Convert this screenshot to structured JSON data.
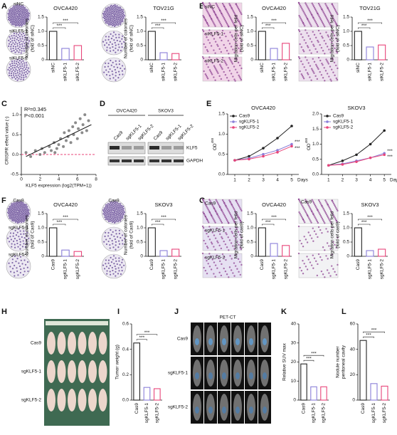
{
  "panel_labels": [
    "A",
    "B",
    "C",
    "D",
    "E",
    "F",
    "G",
    "H",
    "I",
    "J",
    "K",
    "L"
  ],
  "images": {
    "A": [
      "siNC",
      "siKLF5-1",
      "siKLF5-2"
    ],
    "B": [
      "siNC",
      "siKLF5-1",
      "siKLF5-2"
    ],
    "F": [
      "Cas9",
      "sgKLF5-1",
      "sgKLF5-2"
    ],
    "G": [
      "Cas9",
      "sgKLF5-1",
      "sgKLF5-2"
    ],
    "H": [
      "Cas9",
      "sgKLF5-1",
      "sgKLF5-2"
    ],
    "J": [
      "Cas9",
      "sgKLF5-1",
      "sgKLF5-2"
    ]
  },
  "pet_ct_title": "PET-CT",
  "western_blot": {
    "cell_lines": [
      "OVCA420",
      "SKOV3"
    ],
    "lanes": [
      "Cas9",
      "sgKLF5-1",
      "sgKLF5-2",
      "Cas9",
      "sgKLF5-1",
      "sgKLF5-2"
    ],
    "proteins": [
      "KLF5",
      "GAPDH"
    ]
  },
  "chart_data": [
    {
      "type": "bar",
      "title": "OVCA420",
      "y_label": [
        "Number of colonies",
        "(fold of siNC)"
      ],
      "categories": [
        "siNC",
        "siKLF5-1",
        "siKLF5-2"
      ],
      "values": [
        1.0,
        0.4,
        0.5
      ],
      "colors": [
        "#222222",
        "#8a7fd8",
        "#e8457a"
      ],
      "ylim": [
        0,
        1.5
      ],
      "yticks": [
        0,
        0.5,
        {
          "value": 1,
          "label": "1.0"
        },
        1.5
      ],
      "annotations": [
        "***",
        "***"
      ]
    },
    {
      "type": "bar",
      "title": "TOV21G",
      "y_label": [
        "Number of colonies",
        "(fold of siNC)"
      ],
      "categories": [
        "siNC",
        "siKLF5-1",
        "siKLF5-2"
      ],
      "values": [
        1.0,
        0.25,
        0.22
      ],
      "colors": [
        "#222222",
        "#8a7fd8",
        "#e8457a"
      ],
      "ylim": [
        0,
        1.5
      ],
      "yticks": [
        0,
        0.5,
        {
          "value": 1,
          "label": "1.0"
        },
        1.5
      ],
      "annotations": [
        "***",
        "***"
      ]
    },
    {
      "type": "bar",
      "title": "OVCA420",
      "y_label": [
        "Migration cells per feild",
        "(fold of siNC)"
      ],
      "categories": [
        "siNC",
        "siKLF5-1",
        "siKLF5-2"
      ],
      "values": [
        1.0,
        0.4,
        0.58
      ],
      "colors": [
        "#222222",
        "#8a7fd8",
        "#e8457a"
      ],
      "ylim": [
        0,
        1.5
      ],
      "yticks": [
        0,
        0.5,
        {
          "value": 1,
          "label": "1.0"
        },
        1.5
      ],
      "annotations": [
        "***",
        "***"
      ]
    },
    {
      "type": "bar",
      "title": "TOV21G",
      "y_label": [
        "Migration cells per feild",
        "(fold of siNC)"
      ],
      "categories": [
        "siNC",
        "siKLF5-1",
        "siKLF5-2"
      ],
      "values": [
        1.0,
        0.45,
        0.52
      ],
      "colors": [
        "#222222",
        "#8a7fd8",
        "#e8457a"
      ],
      "ylim": [
        0,
        1.5
      ],
      "yticks": [
        0,
        0.5,
        {
          "value": 1,
          "label": "1.0"
        },
        1.5
      ],
      "annotations": [
        "***",
        "***"
      ]
    },
    {
      "type": "scatter",
      "x_label": "KLF5 expression (log2(TPM+1))",
      "y_label": "CRISPR effect value (-)",
      "annotations": [
        "R²=0.345",
        "P<0.001"
      ],
      "color": "#777777",
      "x": [
        0.5,
        1.0,
        1.5,
        2.0,
        2.2,
        2.5,
        3.0,
        3.2,
        3.5,
        3.8,
        4.0,
        4.2,
        4.5,
        4.6,
        4.8,
        5.0,
        5.1,
        5.3,
        5.5,
        5.6,
        5.8,
        6.0,
        6.1,
        6.3,
        6.5,
        6.6,
        6.8,
        7.0,
        7.2,
        3.6
      ],
      "y": [
        0.05,
        -0.05,
        0.1,
        0.0,
        0.15,
        0.05,
        0.2,
        0.1,
        0.3,
        0.15,
        0.25,
        0.4,
        0.2,
        0.55,
        0.35,
        0.45,
        0.6,
        0.3,
        0.7,
        0.5,
        0.8,
        0.4,
        0.65,
        0.9,
        0.55,
        0.75,
        1.0,
        0.6,
        0.85,
        0.05
      ],
      "fit": {
        "x": [
          0.5,
          7.5
        ],
        "y": [
          -0.05,
          0.75
        ]
      },
      "hline": 0,
      "hline_color": "#e8457a",
      "xlim": [
        0,
        8
      ],
      "xticks": [
        0,
        2,
        4,
        6,
        8
      ],
      "ylim": [
        -0.5,
        1.2
      ],
      "yticks": [
        -0.5,
        {
          "value": 0,
          "label": "0.0"
        },
        0.5,
        {
          "value": 1,
          "label": "1.0"
        }
      ]
    },
    {
      "type": "line",
      "title": "OVCA420",
      "y_label": "OD",
      "y_label_sub": "450",
      "x_label": "Days",
      "x": [
        1,
        2,
        3,
        4,
        5
      ],
      "xlim": [
        0.5,
        5.5
      ],
      "xticks": [
        1,
        2,
        3,
        4,
        5
      ],
      "ylim": [
        0,
        1.5
      ],
      "yticks": [
        {
          "value": 0,
          "label": "0.0"
        },
        0.5,
        {
          "value": 1,
          "label": "1.0"
        },
        1.5
      ],
      "annotations": [
        "***",
        "***"
      ],
      "series": [
        {
          "name": "Cas9",
          "color": "#222222",
          "values": [
            0.35,
            0.45,
            0.65,
            0.9,
            1.2
          ]
        },
        {
          "name": "sgKLF5-1",
          "color": "#8a7fd8",
          "values": [
            0.35,
            0.4,
            0.5,
            0.6,
            0.75
          ]
        },
        {
          "name": "sgKLF5-2",
          "color": "#e8457a",
          "values": [
            0.35,
            0.38,
            0.45,
            0.55,
            0.7
          ]
        }
      ]
    },
    {
      "type": "line",
      "title": "SKOV3",
      "y_label": "OD",
      "y_label_sub": "450",
      "x_label": "Days",
      "x": [
        1,
        2,
        3,
        4,
        5
      ],
      "xlim": [
        0.5,
        5.5
      ],
      "xticks": [
        1,
        2,
        3,
        4,
        5
      ],
      "ylim": [
        0,
        2
      ],
      "yticks": [
        {
          "value": 0,
          "label": "0.0"
        },
        0.5,
        {
          "value": 1,
          "label": "1.0"
        },
        1.5,
        {
          "value": 2,
          "label": "2.0"
        }
      ],
      "annotations": [
        "***",
        "***"
      ],
      "series": [
        {
          "name": "Cas9",
          "color": "#222222",
          "values": [
            0.3,
            0.45,
            0.65,
            1.0,
            1.45
          ]
        },
        {
          "name": "sgKLF5-1",
          "color": "#8a7fd8",
          "values": [
            0.3,
            0.35,
            0.45,
            0.55,
            0.7
          ]
        },
        {
          "name": "sgKLF5-2",
          "color": "#e8457a",
          "values": [
            0.3,
            0.33,
            0.42,
            0.55,
            0.65
          ]
        }
      ]
    },
    {
      "type": "bar",
      "title": "OVCA420",
      "y_label": [
        "Number of colonies",
        "(fold of Cas9)"
      ],
      "categories": [
        "Cas9",
        "sgKLF5-1",
        "sgKLF5-2"
      ],
      "values": [
        1.0,
        0.22,
        0.17
      ],
      "colors": [
        "#222222",
        "#8a7fd8",
        "#e8457a"
      ],
      "ylim": [
        0,
        1.5
      ],
      "yticks": [
        0,
        0.5,
        {
          "value": 1,
          "label": "1.0"
        },
        1.5
      ],
      "annotations": [
        "***",
        "***"
      ]
    },
    {
      "type": "bar",
      "title": "SKOV3",
      "y_label": [
        "Number of colonies",
        "(fold of Cas9)"
      ],
      "categories": [
        "Cas9",
        "sgKLF5-1",
        "sgKLF5-2"
      ],
      "values": [
        1.0,
        0.2,
        0.25
      ],
      "colors": [
        "#222222",
        "#8a7fd8",
        "#e8457a"
      ],
      "ylim": [
        0,
        1.5
      ],
      "yticks": [
        0,
        0.5,
        {
          "value": 1,
          "label": "1.0"
        },
        1.5
      ],
      "annotations": [
        "***",
        "***"
      ]
    },
    {
      "type": "bar",
      "title": "OVCA420",
      "y_label": [
        "Migration cells per feild",
        "(fold of cas9)"
      ],
      "categories": [
        "Cas9",
        "sgKLF5-1",
        "sgKLF5-2"
      ],
      "values": [
        1.0,
        0.45,
        0.38
      ],
      "colors": [
        "#222222",
        "#8a7fd8",
        "#e8457a"
      ],
      "ylim": [
        0,
        1.5
      ],
      "yticks": [
        0,
        0.5,
        {
          "value": 1,
          "label": "1.0"
        },
        1.5
      ],
      "annotations": [
        "***",
        "***"
      ]
    },
    {
      "type": "bar",
      "title": "SKOV3",
      "y_label": [
        "Migration cells per feild",
        "(fold of cas9)"
      ],
      "categories": [
        "Cas9",
        "sgKLF5-1",
        "sgKLF5-2"
      ],
      "values": [
        1.0,
        0.2,
        0.25
      ],
      "colors": [
        "#222222",
        "#8a7fd8",
        "#e8457a"
      ],
      "ylim": [
        0,
        1.5
      ],
      "yticks": [
        0,
        0.5,
        {
          "value": 1,
          "label": "1.0"
        },
        1.5
      ],
      "annotations": [
        "***",
        "***"
      ]
    },
    {
      "type": "bar",
      "y_label": [
        "Tumor weight (g)"
      ],
      "categories": [
        "Cas9",
        "sgKLF5-1",
        "sgKLF5-2"
      ],
      "values": [
        0.45,
        0.1,
        0.09
      ],
      "colors": [
        "#222222",
        "#8a7fd8",
        "#e8457a"
      ],
      "ylim": [
        0,
        0.6
      ],
      "yticks": [
        {
          "value": 0,
          "label": "0.0"
        },
        0.2,
        0.4,
        0.6
      ],
      "annotations": [
        "***",
        "***"
      ]
    },
    {
      "type": "bar",
      "y_label": [
        "Relative SUV max"
      ],
      "categories": [
        "Cas9",
        "sgKLF5-1",
        "sgKLF5-2"
      ],
      "values": [
        19,
        7,
        7
      ],
      "colors": [
        "#222222",
        "#8a7fd8",
        "#e8457a"
      ],
      "ylim": [
        0,
        40
      ],
      "yticks": [
        0,
        10,
        20,
        30,
        40
      ],
      "annotations": [
        "***",
        "***"
      ]
    },
    {
      "type": "bar",
      "y_label": [
        "Nodule number",
        "peritoneal cavity"
      ],
      "categories": [
        "Cas9",
        "sgKLF5-1",
        "sgKLF5-2"
      ],
      "values": [
        47,
        13,
        11
      ],
      "colors": [
        "#222222",
        "#8a7fd8",
        "#e8457a"
      ],
      "ylim": [
        0,
        60
      ],
      "yticks": [
        0,
        20,
        40,
        60
      ],
      "annotations": [
        "***",
        "***"
      ]
    }
  ]
}
